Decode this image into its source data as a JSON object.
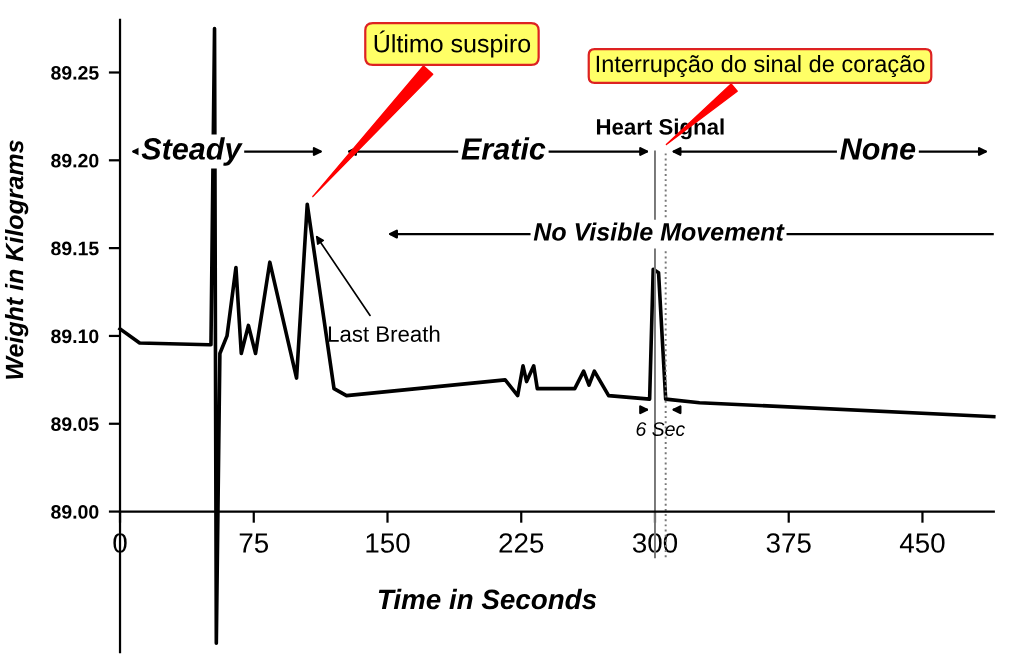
{
  "chart_data": {
    "type": "line",
    "xlabel": "Time in Seconds",
    "ylabel": "Weight in Kilograms",
    "x": [
      0,
      11,
      50,
      51,
      53,
      54,
      56,
      60,
      65,
      68,
      72,
      76,
      84,
      99,
      105,
      120,
      127,
      216,
      223,
      226,
      228,
      232,
      234,
      255,
      260,
      263,
      266,
      274,
      297,
      299,
      302,
      306,
      325,
      490
    ],
    "series": [
      {
        "color": "#000000",
        "values": [
          89.104,
          89.096,
          89.095,
          89.095,
          89.275,
          88.925,
          89.09,
          89.1,
          89.139,
          89.09,
          89.106,
          89.09,
          89.142,
          89.076,
          89.175,
          89.07,
          89.066,
          89.075,
          89.066,
          89.083,
          89.074,
          89.083,
          89.07,
          89.07,
          89.08,
          89.072,
          89.08,
          89.066,
          89.064,
          89.138,
          89.136,
          89.064,
          89.062,
          89.054
        ]
      }
    ],
    "xlim": [
      0,
      490
    ],
    "ylim": [
      88.92,
      89.28
    ],
    "xticks": [
      0,
      75,
      150,
      225,
      300,
      375,
      450
    ],
    "yticks": [
      {
        "value": 89.0,
        "label": "89.00"
      },
      {
        "value": 89.05,
        "label": "89.05"
      },
      {
        "value": 89.1,
        "label": "89.10"
      },
      {
        "value": 89.15,
        "label": "89.15"
      },
      {
        "value": 89.2,
        "label": "89.20"
      },
      {
        "value": 89.25,
        "label": "89.25"
      }
    ],
    "ref_lines": [
      {
        "axis": "x",
        "value": 300,
        "color": "#777777",
        "line_style": "solid"
      },
      {
        "axis": "x",
        "value": 306,
        "color": "#777777",
        "line_style": "dotted"
      }
    ],
    "annotations": [
      "Steady",
      "Eratic",
      "None",
      "Heart Signal",
      "No Visible Movement",
      {
        "text": "Last Breath",
        "x": 108,
        "y": 89.16
      },
      "6 Sec",
      "Último suspiro",
      "Interrupção do sinal de coração"
    ],
    "grid": false,
    "legend": false,
    "marker": "none",
    "line_style": "solid"
  }
}
